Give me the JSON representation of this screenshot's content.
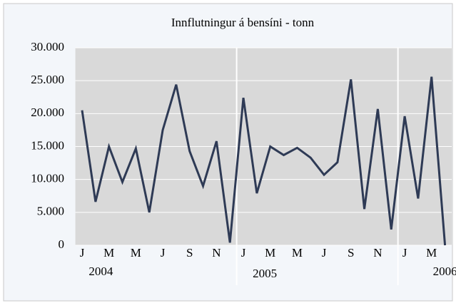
{
  "chart_data": {
    "type": "line",
    "title": "Innflutningur á bensíni - tonn",
    "categories": [
      "J",
      null,
      "M",
      null,
      "M",
      null,
      "J",
      null,
      "S",
      null,
      "N",
      null,
      "J",
      null,
      "M",
      null,
      "M",
      null,
      "J",
      null,
      "S",
      null,
      "N",
      null,
      "J",
      null,
      "M",
      null
    ],
    "year_labels": [
      "2004",
      "2005",
      "2006"
    ],
    "series": [
      {
        "name": "Innflutningur",
        "color": "#2e3a55",
        "values": [
          20500,
          6600,
          15000,
          9600,
          14700,
          5000,
          17500,
          24400,
          14300,
          9000,
          15800,
          400,
          22400,
          7900,
          15000,
          13700,
          14800,
          13300,
          10700,
          12600,
          25200,
          5500,
          20700,
          2400,
          19600,
          7100,
          25600,
          0
        ]
      }
    ],
    "ylim": [
      0,
      30000
    ],
    "yticks": [
      0,
      {
        "value": 5000,
        "label": "5.000"
      },
      {
        "value": 10000,
        "label": "10.000"
      },
      {
        "value": 15000,
        "label": "15.000"
      },
      {
        "value": 20000,
        "label": "20.000"
      },
      {
        "value": 25000,
        "label": "25.000"
      },
      {
        "value": 30000,
        "label": "30.000"
      }
    ],
    "grid": true
  }
}
